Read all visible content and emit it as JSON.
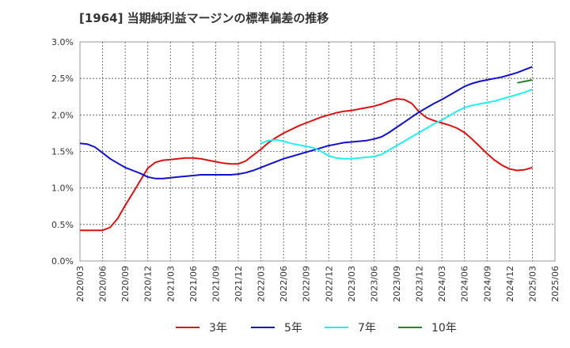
{
  "chart_data": {
    "type": "line",
    "title": "[1964]  当期純利益マージンの標準偏差の推移",
    "xlabel": "",
    "ylabel": "",
    "ylim": [
      0,
      3.0
    ],
    "y_ticks": [
      "0.0%",
      "0.5%",
      "1.0%",
      "1.5%",
      "2.0%",
      "2.5%",
      "3.0%"
    ],
    "x_ticks": [
      "2020/03",
      "2020/06",
      "2020/09",
      "2020/12",
      "2021/03",
      "2021/06",
      "2021/09",
      "2021/12",
      "2022/03",
      "2022/06",
      "2022/09",
      "2022/12",
      "2023/03",
      "2023/06",
      "2023/09",
      "2023/12",
      "2024/03",
      "2024/06",
      "2024/09",
      "2024/12",
      "2025/03",
      "2025/06"
    ],
    "grid": true,
    "legend_position": "bottom",
    "series": [
      {
        "name": "3年",
        "color": "#dd1111",
        "points": [
          [
            "2020/03",
            0.42
          ],
          [
            "2020/04",
            0.42
          ],
          [
            "2020/05",
            0.42
          ],
          [
            "2020/06",
            0.42
          ],
          [
            "2020/07",
            0.46
          ],
          [
            "2020/08",
            0.58
          ],
          [
            "2020/09",
            0.76
          ],
          [
            "2020/10",
            0.93
          ],
          [
            "2020/11",
            1.1
          ],
          [
            "2020/12",
            1.27
          ],
          [
            "2021/01",
            1.35
          ],
          [
            "2021/02",
            1.38
          ],
          [
            "2021/03",
            1.39
          ],
          [
            "2021/04",
            1.4
          ],
          [
            "2021/05",
            1.41
          ],
          [
            "2021/06",
            1.41
          ],
          [
            "2021/07",
            1.4
          ],
          [
            "2021/08",
            1.38
          ],
          [
            "2021/09",
            1.36
          ],
          [
            "2021/10",
            1.34
          ],
          [
            "2021/11",
            1.33
          ],
          [
            "2021/12",
            1.33
          ],
          [
            "2022/01",
            1.37
          ],
          [
            "2022/02",
            1.45
          ],
          [
            "2022/03",
            1.53
          ],
          [
            "2022/04",
            1.62
          ],
          [
            "2022/05",
            1.69
          ],
          [
            "2022/06",
            1.75
          ],
          [
            "2022/07",
            1.8
          ],
          [
            "2022/08",
            1.85
          ],
          [
            "2022/09",
            1.89
          ],
          [
            "2022/10",
            1.93
          ],
          [
            "2022/11",
            1.97
          ],
          [
            "2022/12",
            2.0
          ],
          [
            "2023/01",
            2.03
          ],
          [
            "2023/02",
            2.05
          ],
          [
            "2023/03",
            2.06
          ],
          [
            "2023/04",
            2.08
          ],
          [
            "2023/05",
            2.1
          ],
          [
            "2023/06",
            2.12
          ],
          [
            "2023/07",
            2.15
          ],
          [
            "2023/08",
            2.19
          ],
          [
            "2023/09",
            2.22
          ],
          [
            "2023/10",
            2.21
          ],
          [
            "2023/11",
            2.16
          ],
          [
            "2023/12",
            2.04
          ],
          [
            "2024/01",
            1.96
          ],
          [
            "2024/02",
            1.92
          ],
          [
            "2024/03",
            1.89
          ],
          [
            "2024/04",
            1.86
          ],
          [
            "2024/05",
            1.82
          ],
          [
            "2024/06",
            1.76
          ],
          [
            "2024/07",
            1.67
          ],
          [
            "2024/08",
            1.57
          ],
          [
            "2024/09",
            1.47
          ],
          [
            "2024/10",
            1.38
          ],
          [
            "2024/11",
            1.31
          ],
          [
            "2024/12",
            1.26
          ],
          [
            "2025/01",
            1.24
          ],
          [
            "2025/02",
            1.25
          ],
          [
            "2025/03",
            1.28
          ]
        ]
      },
      {
        "name": "5年",
        "color": "#1111cc",
        "points": [
          [
            "2020/03",
            1.61
          ],
          [
            "2020/04",
            1.6
          ],
          [
            "2020/05",
            1.56
          ],
          [
            "2020/06",
            1.48
          ],
          [
            "2020/07",
            1.4
          ],
          [
            "2020/08",
            1.34
          ],
          [
            "2020/09",
            1.28
          ],
          [
            "2020/10",
            1.24
          ],
          [
            "2020/11",
            1.2
          ],
          [
            "2020/12",
            1.15
          ],
          [
            "2021/01",
            1.13
          ],
          [
            "2021/02",
            1.13
          ],
          [
            "2021/03",
            1.14
          ],
          [
            "2021/04",
            1.15
          ],
          [
            "2021/05",
            1.16
          ],
          [
            "2021/06",
            1.17
          ],
          [
            "2021/07",
            1.18
          ],
          [
            "2021/08",
            1.18
          ],
          [
            "2021/09",
            1.18
          ],
          [
            "2021/10",
            1.18
          ],
          [
            "2021/11",
            1.18
          ],
          [
            "2021/12",
            1.19
          ],
          [
            "2022/01",
            1.21
          ],
          [
            "2022/02",
            1.24
          ],
          [
            "2022/03",
            1.28
          ],
          [
            "2022/04",
            1.32
          ],
          [
            "2022/05",
            1.36
          ],
          [
            "2022/06",
            1.4
          ],
          [
            "2022/07",
            1.43
          ],
          [
            "2022/08",
            1.46
          ],
          [
            "2022/09",
            1.49
          ],
          [
            "2022/10",
            1.52
          ],
          [
            "2022/11",
            1.55
          ],
          [
            "2022/12",
            1.58
          ],
          [
            "2023/01",
            1.6
          ],
          [
            "2023/02",
            1.62
          ],
          [
            "2023/03",
            1.63
          ],
          [
            "2023/04",
            1.64
          ],
          [
            "2023/05",
            1.65
          ],
          [
            "2023/06",
            1.67
          ],
          [
            "2023/07",
            1.7
          ],
          [
            "2023/08",
            1.76
          ],
          [
            "2023/09",
            1.83
          ],
          [
            "2023/10",
            1.9
          ],
          [
            "2023/11",
            1.97
          ],
          [
            "2023/12",
            2.04
          ],
          [
            "2024/01",
            2.1
          ],
          [
            "2024/02",
            2.16
          ],
          [
            "2024/03",
            2.21
          ],
          [
            "2024/04",
            2.27
          ],
          [
            "2024/05",
            2.33
          ],
          [
            "2024/06",
            2.39
          ],
          [
            "2024/07",
            2.43
          ],
          [
            "2024/08",
            2.46
          ],
          [
            "2024/09",
            2.48
          ],
          [
            "2024/10",
            2.5
          ],
          [
            "2024/11",
            2.52
          ],
          [
            "2024/12",
            2.55
          ],
          [
            "2025/01",
            2.58
          ],
          [
            "2025/02",
            2.62
          ],
          [
            "2025/03",
            2.66
          ]
        ]
      },
      {
        "name": "7年",
        "color": "#22eeee",
        "points": [
          [
            "2022/03",
            1.61
          ],
          [
            "2022/04",
            1.65
          ],
          [
            "2022/05",
            1.66
          ],
          [
            "2022/06",
            1.64
          ],
          [
            "2022/07",
            1.61
          ],
          [
            "2022/08",
            1.59
          ],
          [
            "2022/09",
            1.57
          ],
          [
            "2022/10",
            1.55
          ],
          [
            "2022/11",
            1.5
          ],
          [
            "2022/12",
            1.44
          ],
          [
            "2023/01",
            1.41
          ],
          [
            "2023/02",
            1.4
          ],
          [
            "2023/03",
            1.4
          ],
          [
            "2023/04",
            1.41
          ],
          [
            "2023/05",
            1.42
          ],
          [
            "2023/06",
            1.43
          ],
          [
            "2023/07",
            1.46
          ],
          [
            "2023/08",
            1.52
          ],
          [
            "2023/09",
            1.58
          ],
          [
            "2023/10",
            1.64
          ],
          [
            "2023/11",
            1.7
          ],
          [
            "2023/12",
            1.76
          ],
          [
            "2024/01",
            1.82
          ],
          [
            "2024/02",
            1.88
          ],
          [
            "2024/03",
            1.93
          ],
          [
            "2024/04",
            1.99
          ],
          [
            "2024/05",
            2.05
          ],
          [
            "2024/06",
            2.1
          ],
          [
            "2024/07",
            2.13
          ],
          [
            "2024/08",
            2.15
          ],
          [
            "2024/09",
            2.17
          ],
          [
            "2024/10",
            2.19
          ],
          [
            "2024/11",
            2.22
          ],
          [
            "2024/12",
            2.25
          ],
          [
            "2025/01",
            2.28
          ],
          [
            "2025/02",
            2.31
          ],
          [
            "2025/03",
            2.35
          ]
        ]
      },
      {
        "name": "10年",
        "color": "#228822",
        "points": [
          [
            "2025/01",
            2.44
          ],
          [
            "2025/02",
            2.46
          ],
          [
            "2025/03",
            2.48
          ]
        ]
      }
    ]
  }
}
